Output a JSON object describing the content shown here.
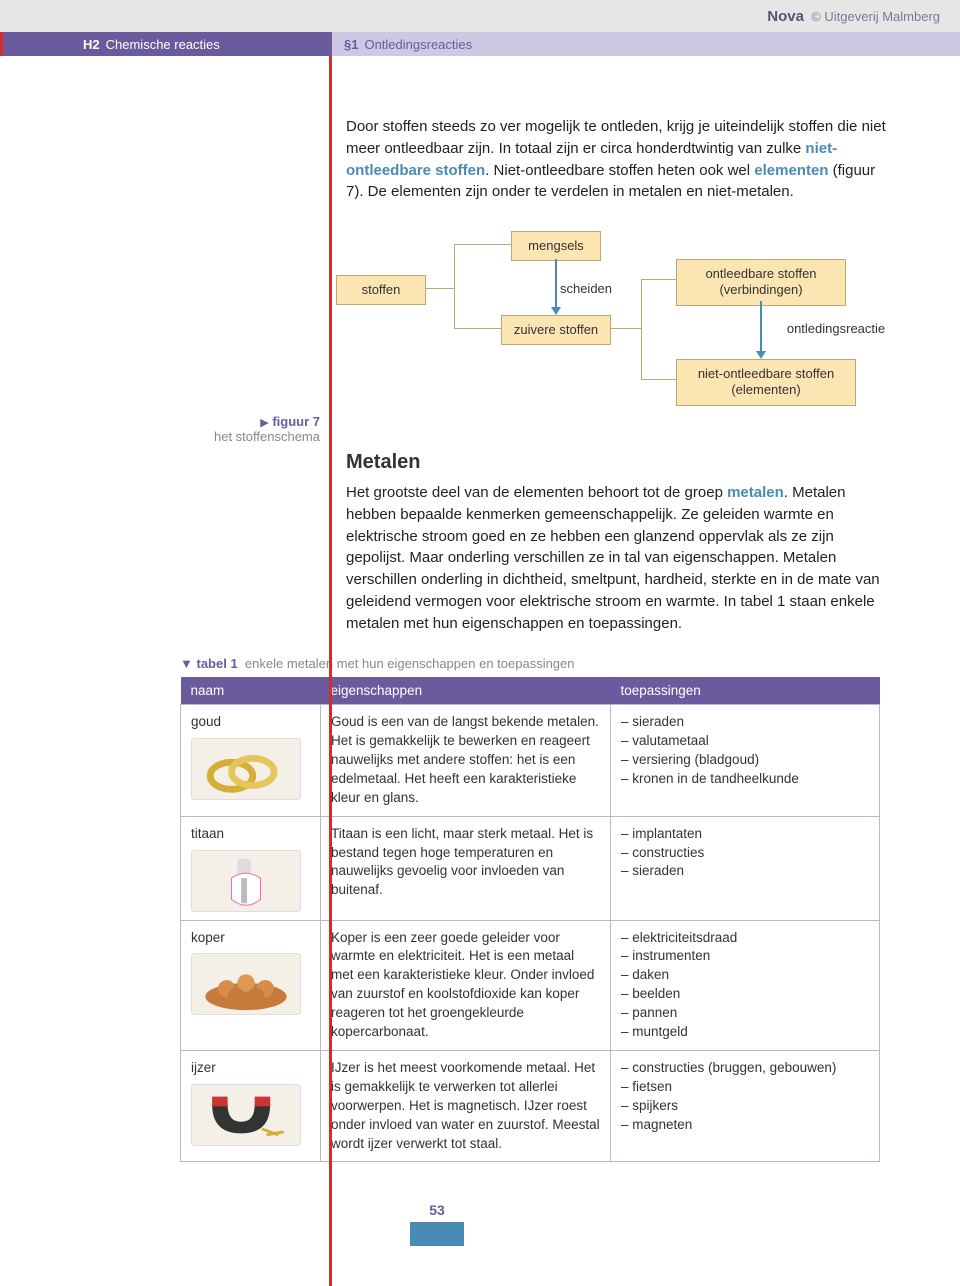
{
  "header": {
    "brand_bold": "Nova",
    "brand_rest": "© Uitgeverij Malmberg",
    "left_code": "H2",
    "left_title": "Chemische reacties",
    "right_code": "§1",
    "right_title": "Ontledingsreacties"
  },
  "intro": {
    "text_before_term1": "Door stoffen steeds zo ver mogelijk te ontleden, krijg je uiteindelijk stoffen die niet meer ontleedbaar zijn. In totaal zijn er circa honderdtwintig van zulke ",
    "term1": "niet-ontleedbare stoffen",
    "text_between": ". Niet-ontleedbare stoffen heten ook wel ",
    "term2": "elementen",
    "text_after": " (figuur 7). De elementen zijn onder te verdelen in metalen en niet-metalen."
  },
  "figure7": {
    "marker": "▶",
    "label": "figuur 7",
    "caption": "het stoffenschema",
    "nodes": {
      "stoffen": "stoffen",
      "mengsels": "mengsels",
      "scheiden": "scheiden",
      "zuivere": "zuivere stoffen",
      "ontleedbare": "ontleedbare stoffen\n(verbindingen)",
      "ontledingsreactie": "ontledingsreactie",
      "niet_ontleedbare": "niet-ontleedbare stoffen\n(elementen)"
    },
    "colors": {
      "box_bg": "#fbe6b3",
      "box_border": "#bca870",
      "arrow": "#4a8bb5"
    }
  },
  "metalen": {
    "heading": "Metalen",
    "para_before_term": "Het grootste deel van de elementen behoort tot de groep ",
    "term": "metalen",
    "para_after_term": ". Metalen hebben bepaalde kenmerken gemeenschappelijk. Ze geleiden warmte en elektrische stroom goed en ze hebben een glanzend oppervlak als ze zijn gepolijst. Maar onderling verschillen ze in tal van eigenschappen. Metalen verschillen onderling in dichtheid, smeltpunt, hardheid, sterkte en in de mate van geleidend vermogen voor elektrische stroom en warmte. In tabel 1 staan enkele metalen met hun eigenschappen en toepassingen."
  },
  "table1": {
    "marker": "▼",
    "label": "tabel 1",
    "caption": "enkele metalen met hun eigenschappen en toepassingen",
    "columns": [
      "naam",
      "eigenschappen",
      "toepassingen"
    ],
    "rows": [
      {
        "naam": "goud",
        "eig": "Goud is een van de langst bekende metalen. Het is gemakkelijk te bewerken en reageert nauwelijks met andere stoffen: het is een edelmetaal. Het heeft een karakteristieke kleur en glans.",
        "toe": "– sieraden\n– valutametaal\n– versiering (bladgoud)\n– kronen in de tandheelkunde",
        "thumb": "rings"
      },
      {
        "naam": "titaan",
        "eig": "Titaan is een licht, maar sterk metaal. Het is bestand tegen hoge temperaturen en nauwelijks gevoelig voor invloeden van buitenaf.",
        "toe": "– implantaten\n– constructies\n– sieraden",
        "thumb": "implant"
      },
      {
        "naam": "koper",
        "eig": "Koper is een zeer goede geleider voor warmte en elektriciteit. Het is een metaal met een karakteristieke kleur. Onder invloed van zuurstof en koolstofdioxide kan koper reageren tot het groengekleurde kopercarbonaat.",
        "toe": "– elektriciteitsdraad\n– instrumenten\n– daken\n– beelden\n– pannen\n– muntgeld",
        "thumb": "coins"
      },
      {
        "naam": "ijzer",
        "eig": "IJzer is het meest voorkomende metaal. Het is gemakkelijk te verwerken tot allerlei voorwerpen. Het is magnetisch. IJzer roest onder invloed van water en zuurstof. Meestal wordt ijzer verwerkt tot staal.",
        "toe": "– constructies (bruggen, gebouwen)\n– fietsen\n– spijkers\n– magneten",
        "thumb": "magnet"
      }
    ]
  },
  "page_number": "53",
  "colors": {
    "purple": "#6a5a9e",
    "purple_light": "#cfc8e4",
    "red": "#d52b2b",
    "blue": "#4a8bb5",
    "sand": "#fbe6b3"
  }
}
